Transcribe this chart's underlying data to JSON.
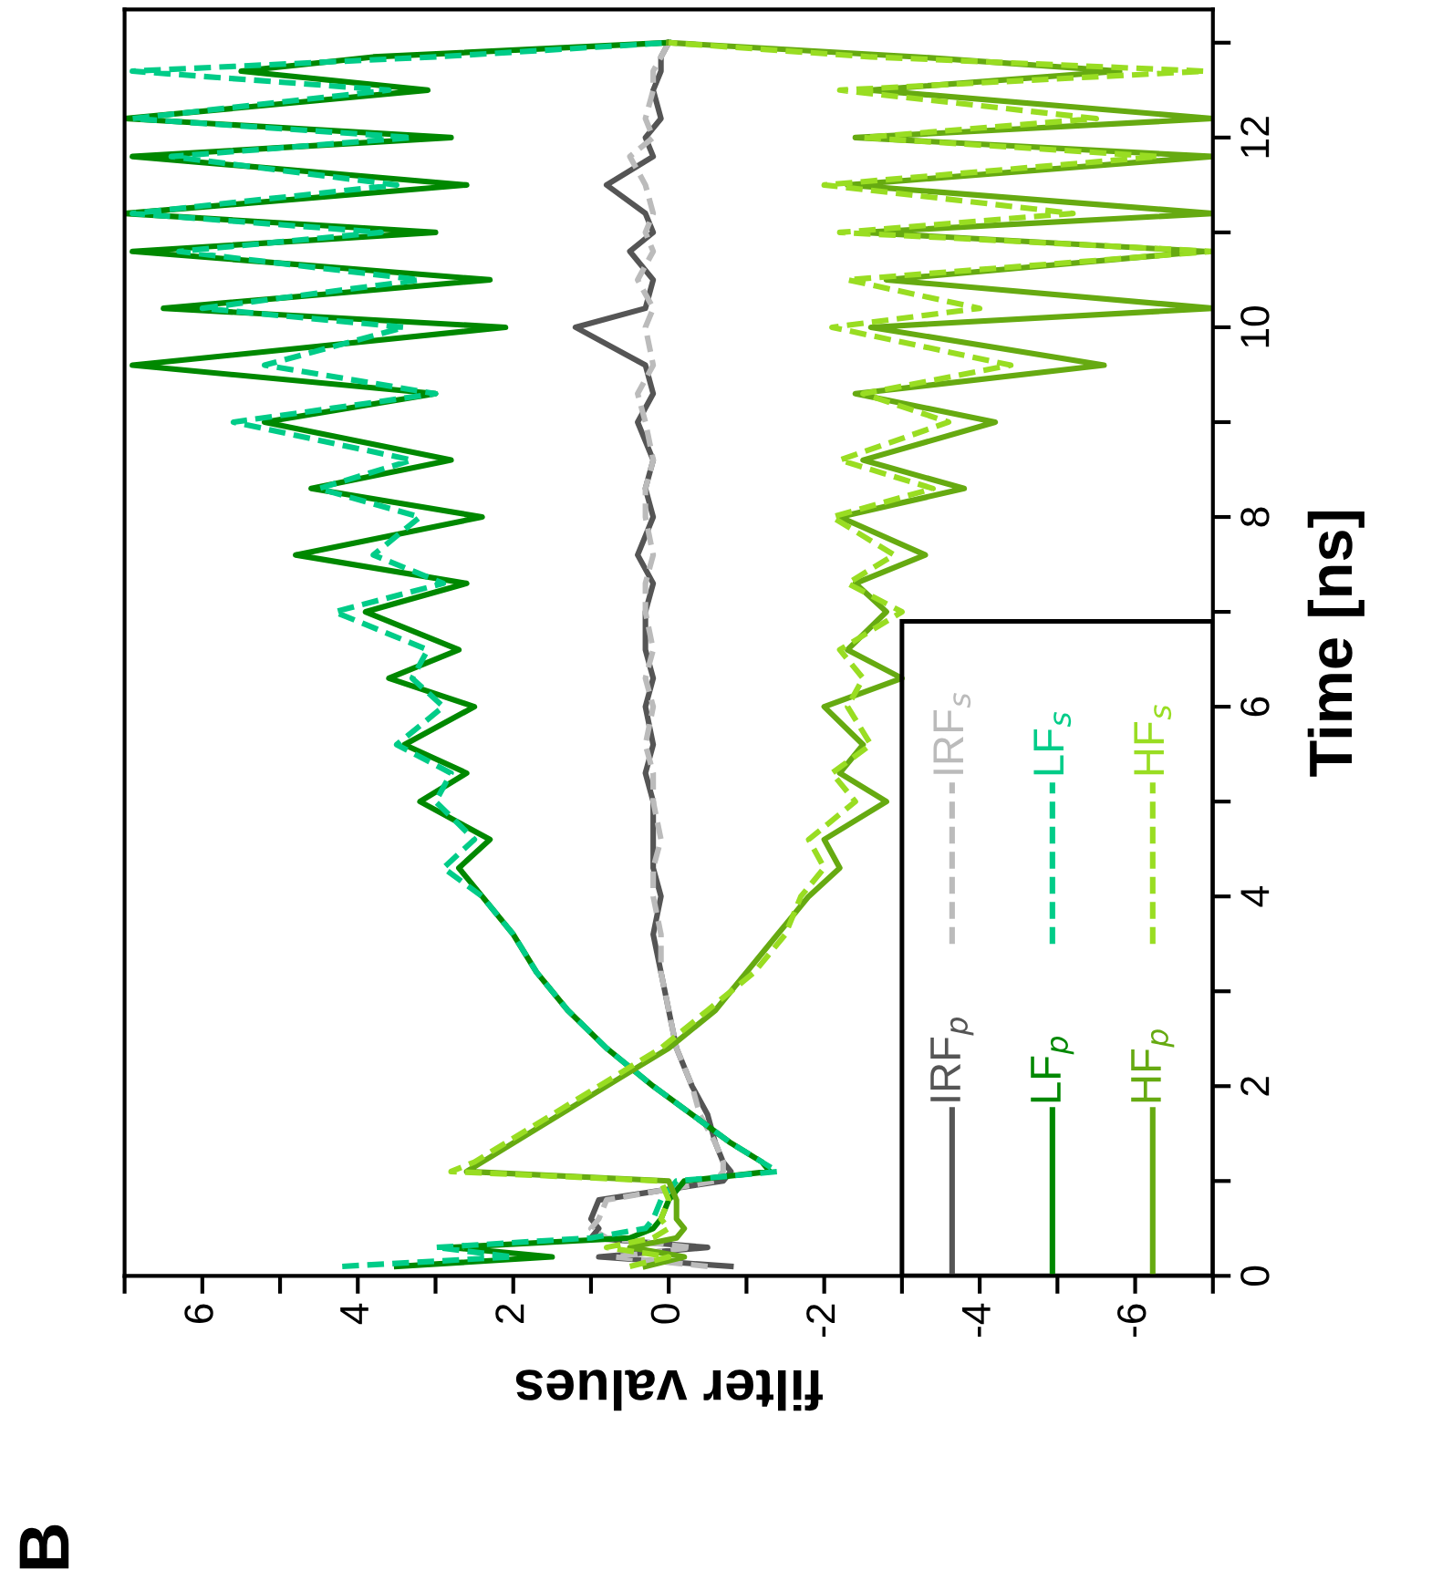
{
  "chart_data": {
    "type": "line",
    "xlabel": "filter values",
    "ylabel": "Time [ns]",
    "annotations": [
      "B"
    ],
    "xlim": [
      7,
      -7
    ],
    "ylim": [
      0,
      13.35
    ],
    "yticks": [
      0,
      {
        "value": 1,
        "label": null
      },
      2,
      {
        "value": 3,
        "label": null
      },
      4,
      {
        "value": 5,
        "label": null
      },
      6,
      {
        "value": 7,
        "label": null
      },
      8,
      {
        "value": 9,
        "label": null
      },
      10,
      {
        "value": 11,
        "label": null
      },
      12,
      {
        "value": 13,
        "label": null
      }
    ],
    "xticks": [
      {
        "value": -7,
        "label": null
      },
      -6,
      {
        "value": -5,
        "label": null
      },
      -4,
      {
        "value": -3,
        "label": null
      },
      -2,
      {
        "value": -1,
        "label": null
      },
      0,
      {
        "value": 1,
        "label": null
      },
      2,
      {
        "value": 3,
        "label": null
      },
      4,
      {
        "value": 5,
        "label": null
      },
      6,
      {
        "value": 7,
        "label": null
      }
    ],
    "grid": false,
    "legend": "bottom right",
    "marker": "none",
    "series": [
      {
        "name": "IRF$_{p}$",
        "color": "#555555",
        "line_style": "solid",
        "x": [
          -0.8,
          0.9,
          -0.5,
          1.0,
          0.9,
          1.0,
          0.9,
          -0.7,
          -0.8,
          -0.7,
          -0.6,
          -0.5,
          -0.3,
          -0.1,
          0.0,
          0.1,
          0.2,
          0.1,
          0.2,
          0.2,
          0.2,
          0.3,
          0.2,
          0.3,
          0.2,
          0.3,
          0.3,
          0.2,
          0.4,
          0.2,
          0.3,
          0.2,
          0.4,
          0.2,
          0.3,
          1.2,
          0.3,
          0.2,
          0.5,
          0.2,
          0.3,
          0.8,
          0.2,
          0.3,
          0.1,
          0.2,
          0.1,
          0.1,
          0.0
        ],
        "values": [
          0.1,
          0.2,
          0.3,
          0.4,
          0.5,
          0.6,
          0.8,
          1.0,
          1.1,
          1.2,
          1.4,
          1.7,
          2.0,
          2.4,
          2.8,
          3.2,
          3.6,
          4.0,
          4.3,
          4.6,
          5.0,
          5.3,
          5.6,
          6.0,
          6.3,
          6.6,
          7.0,
          7.3,
          7.6,
          8.0,
          8.3,
          8.6,
          9.0,
          9.3,
          9.6,
          10.0,
          10.2,
          10.5,
          10.8,
          11.0,
          11.2,
          11.5,
          11.8,
          12.0,
          12.2,
          12.5,
          12.7,
          12.85,
          13.0
        ]
      },
      {
        "name": "IRF$_{s}$",
        "color": "#bbbbbb",
        "line_style": "dashed",
        "x": [
          -0.5,
          0.7,
          -0.3,
          0.8,
          1.0,
          0.9,
          0.8,
          -0.6,
          -0.7,
          -0.7,
          -0.6,
          -0.4,
          -0.3,
          -0.1,
          0.0,
          0.1,
          0.1,
          0.2,
          0.2,
          0.1,
          0.2,
          0.2,
          0.3,
          0.2,
          0.3,
          0.2,
          0.3,
          0.3,
          0.2,
          0.3,
          0.3,
          0.2,
          0.3,
          0.4,
          0.2,
          0.3,
          0.2,
          0.4,
          0.2,
          0.3,
          0.2,
          0.3,
          0.5,
          0.2,
          0.3,
          0.2,
          0.2,
          0.1,
          0.0
        ],
        "values": [
          0.1,
          0.2,
          0.3,
          0.4,
          0.5,
          0.6,
          0.8,
          1.0,
          1.1,
          1.2,
          1.4,
          1.7,
          2.0,
          2.4,
          2.8,
          3.2,
          3.6,
          4.0,
          4.3,
          4.6,
          5.0,
          5.3,
          5.6,
          6.0,
          6.3,
          6.6,
          7.0,
          7.3,
          7.6,
          8.0,
          8.3,
          8.6,
          9.0,
          9.3,
          9.6,
          10.0,
          10.2,
          10.5,
          10.8,
          11.0,
          11.2,
          11.5,
          11.8,
          12.0,
          12.2,
          12.5,
          12.7,
          12.85,
          13.0
        ]
      },
      {
        "name": "LF$_{p}$",
        "color": "#008800",
        "line_style": "solid",
        "x": [
          3.5,
          1.5,
          2.8,
          0.5,
          0.2,
          0.1,
          0.0,
          -0.2,
          -1.3,
          -1.2,
          -0.8,
          -0.3,
          0.2,
          0.8,
          1.3,
          1.7,
          2.0,
          2.4,
          2.7,
          2.3,
          3.2,
          2.6,
          3.4,
          2.5,
          3.6,
          2.7,
          3.9,
          2.6,
          4.8,
          2.4,
          4.6,
          2.8,
          5.2,
          3.0,
          6.9,
          2.1,
          6.5,
          2.3,
          6.9,
          3.0,
          7.0,
          2.6,
          6.9,
          2.8,
          7.0,
          3.1,
          5.5,
          3.8,
          0.0
        ],
        "values": [
          0.1,
          0.2,
          0.3,
          0.4,
          0.5,
          0.6,
          0.8,
          1.0,
          1.1,
          1.2,
          1.4,
          1.7,
          2.0,
          2.4,
          2.8,
          3.2,
          3.6,
          4.0,
          4.3,
          4.6,
          5.0,
          5.3,
          5.6,
          6.0,
          6.3,
          6.6,
          7.0,
          7.3,
          7.6,
          8.0,
          8.3,
          8.6,
          9.0,
          9.3,
          9.6,
          10.0,
          10.2,
          10.5,
          10.8,
          11.0,
          11.2,
          11.5,
          11.8,
          12.0,
          12.2,
          12.5,
          12.7,
          12.85,
          13.0
        ]
      },
      {
        "name": "LF$_{s}$",
        "color": "#00cc88",
        "line_style": "dashed",
        "x": [
          4.2,
          2.0,
          3.0,
          1.0,
          0.3,
          0.2,
          0.1,
          -0.1,
          -1.4,
          -1.2,
          -0.8,
          -0.3,
          0.2,
          0.8,
          1.3,
          1.7,
          2.0,
          2.4,
          2.9,
          2.5,
          3.0,
          2.8,
          3.5,
          2.9,
          3.3,
          3.1,
          4.3,
          2.9,
          3.8,
          3.2,
          4.5,
          3.3,
          5.6,
          3.0,
          5.2,
          3.4,
          6.0,
          3.2,
          6.3,
          3.7,
          6.9,
          3.5,
          6.4,
          3.3,
          6.9,
          3.6,
          6.9,
          3.0,
          0.0
        ],
        "values": [
          0.1,
          0.2,
          0.3,
          0.4,
          0.5,
          0.6,
          0.8,
          1.0,
          1.1,
          1.2,
          1.4,
          1.7,
          2.0,
          2.4,
          2.8,
          3.2,
          3.6,
          4.0,
          4.3,
          4.6,
          5.0,
          5.3,
          5.6,
          6.0,
          6.3,
          6.6,
          7.0,
          7.3,
          7.6,
          8.0,
          8.3,
          8.6,
          9.0,
          9.3,
          9.6,
          10.0,
          10.2,
          10.5,
          10.8,
          11.0,
          11.2,
          11.5,
          11.8,
          12.0,
          12.2,
          12.5,
          12.7,
          12.85,
          13.0
        ]
      },
      {
        "name": "HF$_{p}$",
        "color": "#66aa11",
        "line_style": "solid",
        "x": [
          0.3,
          -0.2,
          0.5,
          -0.1,
          -0.2,
          -0.1,
          -0.1,
          0.0,
          2.6,
          2.4,
          2.0,
          1.4,
          0.8,
          0.0,
          -0.6,
          -1.0,
          -1.4,
          -1.8,
          -2.2,
          -2.0,
          -2.8,
          -2.2,
          -2.5,
          -2.0,
          -3.0,
          -2.3,
          -2.8,
          -2.4,
          -3.3,
          -2.2,
          -3.8,
          -2.5,
          -4.2,
          -2.4,
          -5.6,
          -2.6,
          -7.0,
          -2.8,
          -6.9,
          -2.5,
          -7.0,
          -2.3,
          -7.0,
          -2.4,
          -7.0,
          -2.6,
          -5.8,
          -3.2,
          0.0
        ],
        "values": [
          0.1,
          0.2,
          0.3,
          0.4,
          0.5,
          0.6,
          0.8,
          1.0,
          1.1,
          1.2,
          1.4,
          1.7,
          2.0,
          2.4,
          2.8,
          3.2,
          3.6,
          4.0,
          4.3,
          4.6,
          5.0,
          5.3,
          5.6,
          6.0,
          6.3,
          6.6,
          7.0,
          7.3,
          7.6,
          8.0,
          8.3,
          8.6,
          9.0,
          9.3,
          9.6,
          10.0,
          10.2,
          10.5,
          10.8,
          11.0,
          11.2,
          11.5,
          11.8,
          12.0,
          12.2,
          12.5,
          12.7,
          12.85,
          13.0
        ]
      },
      {
        "name": "HF$_{s}$",
        "color": "#99dd22",
        "line_style": "dashed",
        "x": [
          0.5,
          0.0,
          0.8,
          0.2,
          0.0,
          0.1,
          0.0,
          0.1,
          2.8,
          2.5,
          2.1,
          1.5,
          0.9,
          0.1,
          -0.5,
          -1.1,
          -1.5,
          -1.7,
          -2.0,
          -1.8,
          -2.4,
          -2.1,
          -2.6,
          -2.3,
          -2.5,
          -2.2,
          -3.0,
          -2.3,
          -2.9,
          -2.1,
          -3.4,
          -2.2,
          -3.6,
          -2.5,
          -4.4,
          -2.1,
          -4.0,
          -2.3,
          -7.0,
          -2.2,
          -5.2,
          -2.0,
          -6.3,
          -2.5,
          -5.5,
          -2.2,
          -6.9,
          -2.6,
          0.0
        ],
        "values": [
          0.1,
          0.2,
          0.3,
          0.4,
          0.5,
          0.6,
          0.8,
          1.0,
          1.1,
          1.2,
          1.4,
          1.7,
          2.0,
          2.4,
          2.8,
          3.2,
          3.6,
          4.0,
          4.3,
          4.6,
          5.0,
          5.3,
          5.6,
          6.0,
          6.3,
          6.6,
          7.0,
          7.3,
          7.6,
          8.0,
          8.3,
          8.6,
          9.0,
          9.3,
          9.6,
          10.0,
          10.2,
          10.5,
          10.8,
          11.0,
          11.2,
          11.5,
          11.8,
          12.0,
          12.2,
          12.5,
          12.7,
          12.85,
          13.0
        ]
      }
    ]
  }
}
